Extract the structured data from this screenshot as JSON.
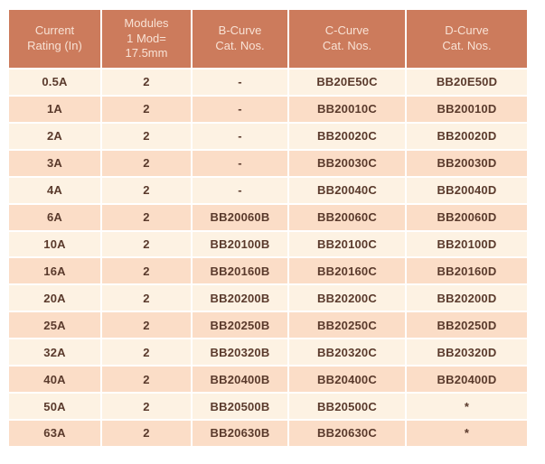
{
  "page": {
    "background": "#ffffff"
  },
  "colors": {
    "header_bg": "#cc7b5c",
    "header_text": "#f8e2d5",
    "row_light": "#fdf2e3",
    "row_dark": "#fbddc7",
    "body_text": "#5a3a2c",
    "divider": "#ffffff"
  },
  "table": {
    "headers": [
      "Current\nRating (In)",
      "Modules\n1 Mod=\n17.5mm",
      "B-Curve\nCat. Nos.",
      "C-Curve\nCat. Nos.",
      "D-Curve\nCat. Nos."
    ],
    "rows": [
      [
        "0.5A",
        "2",
        "-",
        "BB20E50C",
        "BB20E50D"
      ],
      [
        "1A",
        "2",
        "-",
        "BB20010C",
        "BB20010D"
      ],
      [
        "2A",
        "2",
        "-",
        "BB20020C",
        "BB20020D"
      ],
      [
        "3A",
        "2",
        "-",
        "BB20030C",
        "BB20030D"
      ],
      [
        "4A",
        "2",
        "-",
        "BB20040C",
        "BB20040D"
      ],
      [
        "6A",
        "2",
        "BB20060B",
        "BB20060C",
        "BB20060D"
      ],
      [
        "10A",
        "2",
        "BB20100B",
        "BB20100C",
        "BB20100D"
      ],
      [
        "16A",
        "2",
        "BB20160B",
        "BB20160C",
        "BB20160D"
      ],
      [
        "20A",
        "2",
        "BB20200B",
        "BB20200C",
        "BB20200D"
      ],
      [
        "25A",
        "2",
        "BB20250B",
        "BB20250C",
        "BB20250D"
      ],
      [
        "32A",
        "2",
        "BB20320B",
        "BB20320C",
        "BB20320D"
      ],
      [
        "40A",
        "2",
        "BB20400B",
        "BB20400C",
        "BB20400D"
      ],
      [
        "50A",
        "2",
        "BB20500B",
        "BB20500C",
        "*"
      ],
      [
        "63A",
        "2",
        "BB20630B",
        "BB20630C",
        "*"
      ]
    ]
  }
}
